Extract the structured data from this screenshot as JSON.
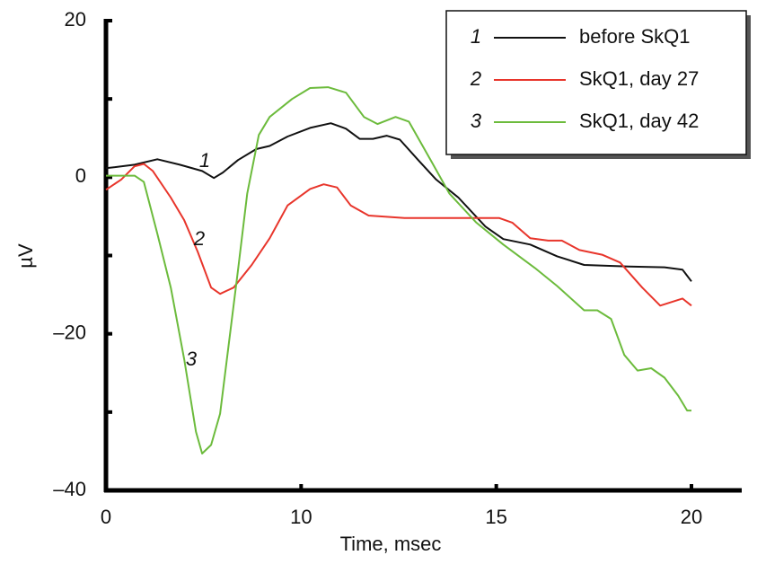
{
  "chart_data": {
    "type": "line",
    "x_label": "Time, msec",
    "y_label": "µV",
    "xlim": [
      0,
      20
    ],
    "xticks": [
      0,
      10,
      15,
      20
    ],
    "ylim": [
      -40,
      20
    ],
    "yticks": [
      20,
      0,
      {
        "value": -20,
        "label": "–20"
      },
      {
        "value": -40,
        "label": "–40"
      }
    ],
    "yminorticks": [
      10,
      -10,
      -30
    ],
    "legend": "upper right",
    "series": [
      {
        "name": "before SkQ1",
        "label": "1",
        "color": "#111111",
        "x": [
          0,
          1.47,
          2.63,
          3.78,
          4.93,
          5.53,
          5.99,
          6.77,
          7.7,
          8.39,
          9.31,
          10.23,
          10.76,
          11.15,
          11.5,
          11.84,
          12.19,
          12.53,
          13.0,
          13.46,
          14.03,
          14.72,
          15.18,
          15.87,
          16.56,
          17.25,
          18.39,
          19.31,
          19.77,
          20
        ],
        "values": [
          1.15,
          1.6,
          2.3,
          1.6,
          0.8,
          -0.1,
          0.6,
          2.2,
          3.6,
          4,
          5.2,
          6.3,
          6.9,
          6.2,
          4.9,
          4.9,
          5.3,
          4.8,
          2.2,
          -0.3,
          -2.6,
          -6.3,
          -7.9,
          -8.6,
          -10.1,
          -11.2,
          -11.4,
          -11.5,
          -11.8,
          -13.3
        ]
      },
      {
        "name": "SkQ1, day 27",
        "label": "2",
        "color": "#e8352b",
        "x": [
          0,
          0.78,
          1.47,
          1.94,
          2.4,
          3.32,
          4.01,
          4.7,
          5.39,
          5.85,
          6.54,
          7.47,
          8.39,
          9.31,
          10.23,
          10.58,
          10.92,
          11.27,
          11.73,
          12.65,
          13.8,
          15.07,
          15.41,
          15.87,
          16.33,
          16.68,
          17.13,
          17.71,
          18.17,
          18.74,
          19.2,
          19.77,
          20
        ],
        "values": [
          -1.6,
          -0.3,
          1.4,
          1.7,
          0.8,
          -2.6,
          -5.5,
          -9.5,
          -14.1,
          -14.9,
          -14.1,
          -11.2,
          -7.8,
          -3.6,
          -1.5,
          -0.9,
          -1.3,
          -3.6,
          -4.9,
          -5.2,
          -5.2,
          -5.2,
          -5.8,
          -7.8,
          -8.1,
          -8.1,
          -9.3,
          -9.9,
          -10.9,
          -14.1,
          -16.4,
          -15.5,
          -16.4
        ]
      },
      {
        "name": "SkQ1, day 42",
        "label": "3",
        "color": "#6cbb3c",
        "x": [
          0,
          1.47,
          1.94,
          2.63,
          3.32,
          4.01,
          4.61,
          4.93,
          5.39,
          5.85,
          6.31,
          6.77,
          7.24,
          7.83,
          8.39,
          9.54,
          10.23,
          10.69,
          11.15,
          11.61,
          11.96,
          12.42,
          12.76,
          13.34,
          13.8,
          14.49,
          15.18,
          15.99,
          16.56,
          17.25,
          17.59,
          17.94,
          18.28,
          18.62,
          18.97,
          19.31,
          19.66,
          19.89,
          20
        ],
        "values": [
          0.2,
          0.2,
          -0.6,
          -7.2,
          -14.1,
          -23.3,
          -32.5,
          -35.3,
          -34.2,
          -30.2,
          -21,
          -11.8,
          -2.1,
          5.4,
          7.7,
          10,
          11.4,
          11.5,
          10.8,
          7.7,
          6.8,
          7.7,
          7.1,
          2,
          -2.1,
          -5.8,
          -8.6,
          -11.6,
          -13.9,
          -17,
          -17,
          -18.1,
          -22.7,
          -24.7,
          -24.4,
          -25.6,
          -27.9,
          -29.8,
          -29.8
        ]
      }
    ]
  }
}
